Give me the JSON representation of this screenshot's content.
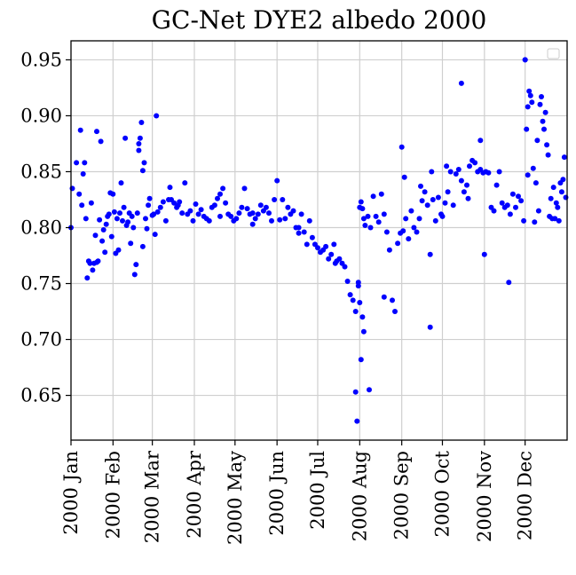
{
  "chart_data": {
    "type": "scatter",
    "title": "GC-Net DYE2 albedo 2000",
    "xlabel": "",
    "ylabel": "",
    "x_ticks": [
      "2000 Jan",
      "2000 Feb",
      "2000 Mar",
      "2000 Apr",
      "2000 May",
      "2000 Jun",
      "2000 Jul",
      "2000 Aug",
      "2000 Sep",
      "2000 Oct",
      "2000 Nov",
      "2000 Dec"
    ],
    "y_ticks": [
      "0.65",
      "0.70",
      "0.75",
      "0.80",
      "0.85",
      "0.90",
      "0.95"
    ],
    "xlim": [
      "2000-01-01",
      "2001-01-01"
    ],
    "ylim": [
      0.61,
      0.967
    ],
    "grid": true,
    "legend": "top-right, empty",
    "marker_color": "#0000ff",
    "series": [
      {
        "x": [
          "2000-01-01",
          "2000-01-02",
          "2000-01-05",
          "2000-01-07",
          "2000-01-08",
          "2000-01-11",
          "2000-01-12",
          "2000-01-13",
          "2000-01-14",
          "2000-01-15",
          "2000-01-16",
          "2000-01-17",
          "2000-01-18",
          "2000-01-19",
          "2000-01-20",
          "2000-01-21",
          "2000-01-22",
          "2000-01-23",
          "2000-01-24",
          "2000-01-25",
          "2000-01-26",
          "2000-01-27",
          "2000-01-28",
          "2000-01-29",
          "2000-01-30",
          "2000-01-31",
          "2000-02-01",
          "2000-02-02",
          "2000-02-03",
          "2000-02-04",
          "2000-02-05",
          "2000-02-06",
          "2000-02-07",
          "2000-02-08",
          "2000-02-09",
          "2000-02-10",
          "2000-02-11",
          "2000-02-12",
          "2000-02-13",
          "2000-02-14",
          "2000-02-15",
          "2000-02-16",
          "2000-02-17",
          "2000-02-18",
          "2000-02-19",
          "2000-02-20",
          "2000-02-21",
          "2000-02-22",
          "2000-02-23",
          "2000-02-24",
          "2000-02-25",
          "2000-02-26",
          "2000-02-27",
          "2000-02-28",
          "2000-03-01",
          "2000-03-02",
          "2000-03-03",
          "2000-03-05",
          "2000-03-07",
          "2000-03-09",
          "2000-03-11",
          "2000-03-13",
          "2000-03-15",
          "2000-03-17",
          "2000-03-19",
          "2000-03-21",
          "2000-03-23",
          "2000-03-25",
          "2000-03-27",
          "2000-03-29",
          "2000-03-31",
          "2000-04-02",
          "2000-04-04",
          "2000-04-06",
          "2000-04-08",
          "2000-04-10",
          "2000-04-12",
          "2000-04-14",
          "2000-04-16",
          "2000-04-18",
          "2000-04-20",
          "2000-04-22",
          "2000-04-24",
          "2000-04-26",
          "2000-04-28",
          "2000-04-30",
          "2000-05-02",
          "2000-05-04",
          "2000-05-06",
          "2000-05-08",
          "2000-05-10",
          "2000-05-12",
          "2000-05-14",
          "2000-05-16",
          "2000-05-18",
          "2000-05-20",
          "2000-05-22",
          "2000-05-24",
          "2000-05-26",
          "2000-05-28",
          "2000-05-30",
          "2000-06-01",
          "2000-06-03",
          "2000-06-05",
          "2000-06-07",
          "2000-06-09",
          "2000-06-11",
          "2000-06-13",
          "2000-06-15",
          "2000-06-17",
          "2000-06-19",
          "2000-06-21",
          "2000-06-23",
          "2000-06-25",
          "2000-06-27",
          "2000-06-29",
          "2000-07-01",
          "2000-07-03",
          "2000-07-05",
          "2000-07-07",
          "2000-07-09",
          "2000-07-11",
          "2000-07-13",
          "2000-07-15",
          "2000-07-17",
          "2000-07-19",
          "2000-07-21",
          "2000-07-23",
          "2000-07-25",
          "2000-07-27",
          "2000-07-29",
          "2000-07-31",
          "2000-08-01",
          "2000-08-02",
          "2000-08-03",
          "2000-08-04",
          "2000-08-05",
          "2000-08-07",
          "2000-08-09",
          "2000-08-11",
          "2000-08-13",
          "2000-08-15",
          "2000-08-17",
          "2000-08-19",
          "2000-08-21",
          "2000-08-23",
          "2000-08-25",
          "2000-08-27",
          "2000-08-29",
          "2000-08-31",
          "2000-09-02",
          "2000-09-04",
          "2000-09-06",
          "2000-09-08",
          "2000-09-10",
          "2000-09-12",
          "2000-09-14",
          "2000-09-16",
          "2000-09-18",
          "2000-09-20",
          "2000-09-22",
          "2000-09-24",
          "2000-09-26",
          "2000-09-28",
          "2000-09-30",
          "2000-10-01",
          "2000-10-03",
          "2000-10-05",
          "2000-10-07",
          "2000-10-09",
          "2000-10-11",
          "2000-10-13",
          "2000-10-15",
          "2000-10-17",
          "2000-10-19",
          "2000-10-21",
          "2000-10-23",
          "2000-10-25",
          "2000-10-27",
          "2000-10-29",
          "2000-10-31",
          "2000-11-02",
          "2000-11-04",
          "2000-11-06",
          "2000-11-08",
          "2000-11-10",
          "2000-11-12",
          "2000-11-14",
          "2000-11-16",
          "2000-11-18",
          "2000-11-20",
          "2000-11-22",
          "2000-11-24",
          "2000-11-26",
          "2000-11-28",
          "2000-11-30",
          "2000-12-01",
          "2000-12-02",
          "2000-12-03",
          "2000-12-04",
          "2000-12-05",
          "2000-12-06",
          "2000-12-07",
          "2000-12-08",
          "2000-12-09",
          "2000-12-10",
          "2000-12-11",
          "2000-12-12",
          "2000-12-13",
          "2000-12-14",
          "2000-12-15",
          "2000-12-16",
          "2000-12-17",
          "2000-12-18",
          "2000-12-19",
          "2000-12-20",
          "2000-12-21",
          "2000-12-22",
          "2000-12-23",
          "2000-12-24",
          "2000-12-25",
          "2000-12-26",
          "2000-12-27",
          "2000-12-28",
          "2000-12-29",
          "2000-12-30",
          "2000-12-31",
          "2000-01-09",
          "2000-01-10",
          "2000-01-20",
          "2000-02-20",
          "2000-02-23",
          "2000-03-04",
          "2000-03-14",
          "2000-03-20",
          "2000-04-20",
          "2000-05-14",
          "2000-06-17",
          "2000-07-14",
          "2000-08-08",
          "2000-08-19",
          "2000-09-01",
          "2000-09-03",
          "2000-09-15",
          "2000-09-23",
          "2000-10-04",
          "2000-10-20",
          "2000-11-01",
          "2000-11-19",
          "2000-12-03"
        ],
        "y": [
          0.8,
          0.835,
          0.858,
          0.83,
          0.887,
          0.858,
          0.808,
          0.755,
          0.77,
          0.768,
          0.822,
          0.762,
          0.768,
          0.793,
          0.886,
          0.77,
          0.807,
          0.877,
          0.788,
          0.798,
          0.778,
          0.803,
          0.81,
          0.812,
          0.831,
          0.792,
          0.83,
          0.814,
          0.777,
          0.808,
          0.78,
          0.813,
          0.84,
          0.806,
          0.818,
          0.88,
          0.802,
          0.805,
          0.813,
          0.786,
          0.81,
          0.8,
          0.758,
          0.767,
          0.813,
          0.875,
          0.88,
          0.894,
          0.851,
          0.858,
          0.808,
          0.799,
          0.82,
          0.826,
          0.811,
          0.812,
          0.794,
          0.814,
          0.818,
          0.823,
          0.806,
          0.825,
          0.825,
          0.822,
          0.818,
          0.823,
          0.813,
          0.84,
          0.812,
          0.815,
          0.806,
          0.821,
          0.812,
          0.816,
          0.81,
          0.808,
          0.806,
          0.818,
          0.82,
          0.826,
          0.83,
          0.835,
          0.822,
          0.812,
          0.81,
          0.806,
          0.808,
          0.813,
          0.818,
          0.835,
          0.817,
          0.812,
          0.803,
          0.808,
          0.812,
          0.82,
          0.815,
          0.818,
          0.813,
          0.806,
          0.825,
          0.842,
          0.807,
          0.825,
          0.808,
          0.818,
          0.812,
          0.815,
          0.8,
          0.795,
          0.812,
          0.796,
          0.785,
          0.806,
          0.791,
          0.785,
          0.782,
          0.778,
          0.78,
          0.783,
          0.772,
          0.776,
          0.785,
          0.77,
          0.772,
          0.768,
          0.765,
          0.752,
          0.74,
          0.735,
          0.725,
          0.748,
          0.818,
          0.823,
          0.817,
          0.808,
          0.802,
          0.81,
          0.8,
          0.828,
          0.81,
          0.805,
          0.83,
          0.812,
          0.796,
          0.78,
          0.735,
          0.725,
          0.786,
          0.795,
          0.797,
          0.808,
          0.79,
          0.815,
          0.8,
          0.796,
          0.808,
          0.824,
          0.832,
          0.82,
          0.776,
          0.825,
          0.806,
          0.827,
          0.812,
          0.81,
          0.822,
          0.832,
          0.85,
          0.82,
          0.848,
          0.852,
          0.842,
          0.832,
          0.838,
          0.855,
          0.86,
          0.858,
          0.85,
          0.852,
          0.849,
          0.85,
          0.849,
          0.818,
          0.815,
          0.838,
          0.85,
          0.822,
          0.818,
          0.82,
          0.812,
          0.83,
          0.818,
          0.828,
          0.824,
          0.806,
          0.95,
          0.888,
          0.908,
          0.922,
          0.918,
          0.912,
          0.853,
          0.805,
          0.84,
          0.878,
          0.815,
          0.91,
          0.917,
          0.895,
          0.888,
          0.903,
          0.874,
          0.865,
          0.81,
          0.826,
          0.808,
          0.836,
          0.808,
          0.822,
          0.818,
          0.806,
          0.84,
          0.832,
          0.843,
          0.863,
          0.827,
          0.82,
          0.848,
          0.769,
          0.869,
          0.783,
          0.9,
          0.836,
          0.82,
          0.81,
          0.813,
          0.8,
          0.768,
          0.655,
          0.738,
          0.872,
          0.845,
          0.837,
          0.85,
          0.855,
          0.826,
          0.776,
          0.751,
          0.847
        ]
      },
      {
        "x": [
          "2000-07-29",
          "2000-07-30",
          "2000-07-31",
          "2000-08-01",
          "2000-08-02",
          "2000-08-03",
          "2000-08-04",
          "2000-09-22",
          "2000-10-15",
          "2000-10-29",
          "2000-12-01"
        ],
        "y": [
          0.653,
          0.627,
          0.751,
          0.733,
          0.682,
          0.72,
          0.707,
          0.711,
          0.929,
          0.878,
          0.95
        ]
      }
    ]
  }
}
